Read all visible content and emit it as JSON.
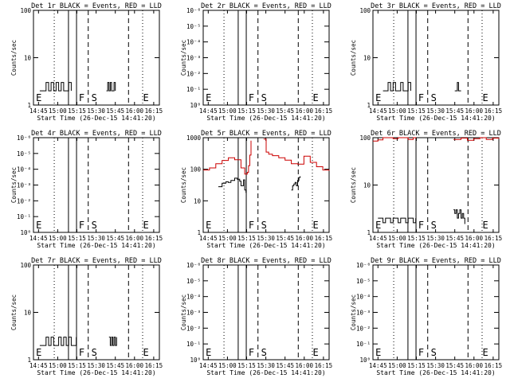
{
  "chart_data": [
    {
      "id": "p1",
      "type": "line",
      "title": "Det 1r BLACK = Events, RED = LLD",
      "xlabel": "Start Time (26-Dec-15 14:41:20)",
      "ylabel": "Counts/sec",
      "x_ticks": [
        "14:45",
        "15:00",
        "15:15",
        "15:30",
        "15:45",
        "16:00",
        "16:15"
      ],
      "y_ticks": [
        "1",
        "10",
        "100"
      ],
      "y_scale": "log",
      "ylim": [
        1,
        100
      ],
      "xlim_minutes": [
        0,
        100
      ],
      "markers": [
        "E",
        "F",
        "S",
        "E"
      ],
      "series": [
        {
          "color": "#000000",
          "x": [
            5,
            8,
            10,
            12,
            14,
            16,
            18,
            20,
            22,
            24,
            26,
            28,
            30
          ],
          "y": [
            2,
            2,
            3,
            2,
            3,
            2,
            3,
            2,
            3,
            2,
            2,
            3,
            2
          ]
        },
        {
          "color": "#000000",
          "x": [
            58,
            59,
            60,
            61,
            62,
            63,
            64,
            65
          ],
          "y": [
            2,
            3,
            2,
            3,
            2,
            2,
            3,
            2
          ]
        }
      ]
    },
    {
      "id": "p2",
      "type": "line",
      "title": "Det 2r BLACK = Events, RED = LLD",
      "xlabel": "Start Time (26-Dec-15 14:41:20)",
      "ylabel": "Counts/sec",
      "x_ticks": [
        "14:45",
        "15:00",
        "15:15",
        "15:30",
        "15:45",
        "16:00",
        "16:15"
      ],
      "y_ticks": [
        "10⁰",
        "10⁻¹",
        "10⁻²",
        "10⁻³",
        "10⁻⁴",
        "10⁻⁵",
        "10⁻⁶"
      ],
      "y_scale": "log",
      "xlim_minutes": [
        0,
        100
      ],
      "markers": [
        "E",
        "F",
        "S",
        "E"
      ],
      "series": []
    },
    {
      "id": "p3",
      "type": "line",
      "title": "Det 3r BLACK = Events, RED = LLD",
      "xlabel": "Start Time (26-Dec-15 14:41:20)",
      "ylabel": "Counts/sec",
      "x_ticks": [
        "14:45",
        "15:00",
        "15:15",
        "15:30",
        "15:45",
        "16:00",
        "16:15"
      ],
      "y_ticks": [
        "1",
        "10",
        "100"
      ],
      "y_scale": "log",
      "ylim": [
        1,
        100
      ],
      "xlim_minutes": [
        0,
        100
      ],
      "markers": [
        "E",
        "F",
        "S",
        "E"
      ],
      "series": [
        {
          "color": "#000000",
          "x": [
            8,
            10,
            12,
            14,
            16,
            18,
            20,
            22,
            24,
            26,
            28,
            30
          ],
          "y": [
            2,
            2,
            3,
            2,
            3,
            2,
            2,
            3,
            2,
            2,
            3,
            2
          ]
        },
        {
          "color": "#000000",
          "x": [
            65,
            66,
            67,
            68,
            69,
            70
          ],
          "y": [
            2,
            2,
            3,
            2,
            2,
            2
          ]
        }
      ]
    },
    {
      "id": "p4",
      "type": "line",
      "title": "Det 4r BLACK = Events, RED = LLD",
      "xlabel": "Start Time (26-Dec-15 14:41:20)",
      "ylabel": "Counts/sec",
      "x_ticks": [
        "14:45",
        "15:00",
        "15:15",
        "15:30",
        "15:45",
        "16:00",
        "16:15"
      ],
      "y_ticks": [
        "10⁰",
        "10⁻¹",
        "10⁻²",
        "10⁻³",
        "10⁻⁴",
        "10⁻⁵",
        "10⁻⁶"
      ],
      "y_scale": "log",
      "xlim_minutes": [
        0,
        100
      ],
      "markers": [
        "E",
        "F",
        "S",
        "E"
      ],
      "series": []
    },
    {
      "id": "p5",
      "type": "line",
      "title": "Det 5r BLACK = Events, RED = LLD",
      "xlabel": "Start Time (26-Dec-15 14:41:20)",
      "ylabel": "Counts/sec",
      "x_ticks": [
        "14:45",
        "15:00",
        "15:15",
        "15:30",
        "15:45",
        "16:00",
        "16:15"
      ],
      "y_ticks": [
        "1",
        "10",
        "100",
        "1000"
      ],
      "y_scale": "log",
      "ylim": [
        1,
        1000
      ],
      "xlim_minutes": [
        0,
        100
      ],
      "markers": [
        "E",
        "F",
        "S",
        "E"
      ],
      "series": [
        {
          "color": "#cc0000",
          "x": [
            0,
            5,
            10,
            15,
            20,
            25,
            30,
            33,
            35,
            36,
            37,
            38
          ],
          "y": [
            95,
            110,
            150,
            190,
            230,
            200,
            110,
            70,
            80,
            130,
            280,
            800
          ]
        },
        {
          "color": "#cc0000",
          "x": [
            48,
            50,
            52,
            55,
            60,
            65,
            70,
            75,
            80,
            85,
            90,
            95,
            100
          ],
          "y": [
            900,
            350,
            300,
            270,
            230,
            195,
            150,
            145,
            260,
            165,
            120,
            95,
            90
          ]
        },
        {
          "color": "#000000",
          "x": [
            12,
            15,
            18,
            20,
            22,
            25,
            27,
            29,
            30,
            32,
            33,
            34
          ],
          "y": [
            28,
            36,
            40,
            38,
            44,
            52,
            48,
            42,
            30,
            46,
            22,
            18
          ]
        },
        {
          "color": "#000000",
          "x": [
            70,
            71,
            72,
            73,
            74,
            75,
            76,
            77
          ],
          "y": [
            22,
            30,
            34,
            38,
            30,
            44,
            55,
            60
          ]
        }
      ]
    },
    {
      "id": "p6",
      "type": "line",
      "title": "Det 6r BLACK = Events, RED = LLD",
      "xlabel": "Start Time (26-Dec-15 14:41:20)",
      "ylabel": "Counts/sec",
      "x_ticks": [
        "14:45",
        "15:00",
        "15:15",
        "15:30",
        "15:45",
        "16:00",
        "16:15"
      ],
      "y_ticks": [
        "1",
        "10",
        "100"
      ],
      "y_scale": "log",
      "ylim": [
        1,
        100
      ],
      "xlim_minutes": [
        0,
        100
      ],
      "markers": [
        "E",
        "F",
        "S",
        "E"
      ],
      "series": [
        {
          "color": "#cc0000",
          "x": [
            0,
            4,
            8,
            12,
            16,
            20,
            24,
            28,
            32,
            34
          ],
          "y": [
            85,
            90,
            100,
            110,
            95,
            105,
            100,
            92,
            100,
            95
          ]
        },
        {
          "color": "#cc0000",
          "x": [
            64,
            70,
            75,
            80,
            85,
            90,
            95,
            100
          ],
          "y": [
            92,
            98,
            88,
            95,
            100,
            92,
            98,
            95
          ]
        },
        {
          "color": "#000000",
          "x": [
            4,
            6,
            8,
            10,
            12,
            14,
            16,
            18,
            20,
            22,
            24,
            26,
            28,
            30,
            32,
            34
          ],
          "y": [
            2,
            2,
            1.6,
            2,
            2,
            1.6,
            2,
            2,
            1.6,
            2,
            2,
            1.6,
            2,
            2,
            1.6,
            2
          ]
        },
        {
          "color": "#000000",
          "x": [
            64,
            65,
            66,
            67,
            68,
            69,
            70,
            71,
            72,
            73
          ],
          "y": [
            3,
            2.5,
            3,
            2,
            2.5,
            3,
            2,
            2.5,
            2,
            1.5
          ]
        }
      ]
    },
    {
      "id": "p7",
      "type": "line",
      "title": "Det 7r BLACK = Events, RED = LLD",
      "xlabel": "Start Time (26-Dec-15 14:41:20)",
      "ylabel": "Counts/sec",
      "x_ticks": [
        "14:45",
        "15:00",
        "15:15",
        "15:30",
        "15:45",
        "16:00",
        "16:15"
      ],
      "y_ticks": [
        "1",
        "10",
        "100"
      ],
      "y_scale": "log",
      "ylim": [
        1,
        100
      ],
      "xlim_minutes": [
        0,
        100
      ],
      "markers": [
        "E",
        "F",
        "S",
        "E"
      ],
      "series": [
        {
          "color": "#000000",
          "x": [
            5,
            8,
            10,
            12,
            14,
            16,
            18,
            20,
            22,
            24,
            26,
            28,
            30,
            32,
            34
          ],
          "y": [
            2,
            2,
            3,
            2,
            3,
            2,
            2,
            3,
            2,
            3,
            2,
            3,
            2,
            2,
            3
          ]
        },
        {
          "color": "#000000",
          "x": [
            60,
            61,
            62,
            63,
            64,
            65,
            66
          ],
          "y": [
            3,
            2,
            3,
            2,
            3,
            2,
            3
          ]
        }
      ]
    },
    {
      "id": "p8",
      "type": "line",
      "title": "Det 8r BLACK = Events, RED = LLD",
      "xlabel": "Start Time (26-Dec-15 14:41:20)",
      "ylabel": "Counts/sec",
      "x_ticks": [
        "14:45",
        "15:00",
        "15:15",
        "15:30",
        "15:45",
        "16:00",
        "16:15"
      ],
      "y_ticks": [
        "10⁰",
        "10⁻¹",
        "10⁻²",
        "10⁻³",
        "10⁻⁴",
        "10⁻⁵",
        "10⁻⁶"
      ],
      "y_scale": "log",
      "xlim_minutes": [
        0,
        100
      ],
      "markers": [
        "E",
        "F",
        "S",
        "E"
      ],
      "series": []
    },
    {
      "id": "p9",
      "type": "line",
      "title": "Det 9r BLACK = Events, RED = LLD",
      "xlabel": "Start Time (26-Dec-15 14:41:20)",
      "ylabel": "Counts/sec",
      "x_ticks": [
        "14:45",
        "15:00",
        "15:15",
        "15:30",
        "15:45",
        "16:00",
        "16:15"
      ],
      "y_ticks": [
        "10⁰",
        "10⁻¹",
        "10⁻²",
        "10⁻³",
        "10⁻⁴",
        "10⁻⁵",
        "10⁻⁶"
      ],
      "y_scale": "log",
      "xlim_minutes": [
        0,
        100
      ],
      "markers": [
        "E",
        "F",
        "S",
        "E"
      ],
      "series": []
    }
  ]
}
